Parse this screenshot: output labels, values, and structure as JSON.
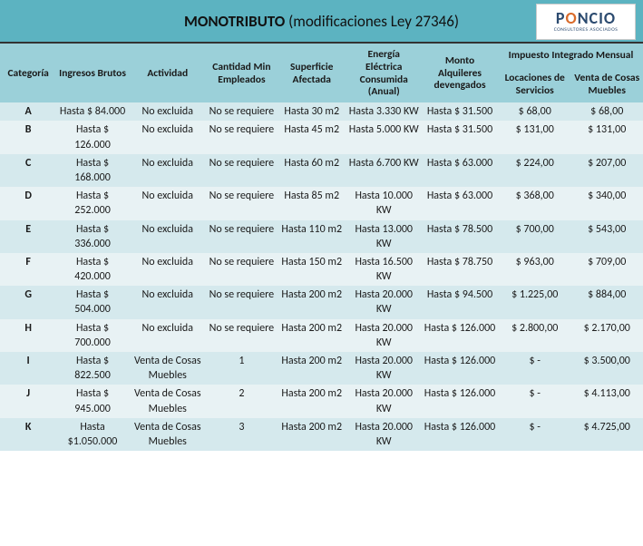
{
  "title_bold": "MONOTRIBUTO",
  "title_rest": " (modificaciones Ley 27346)",
  "logo": {
    "brand_pre": "P",
    "brand_accent": "O",
    "brand_post": "NCIO",
    "sub": "CONSULTORES ASOCIADOS"
  },
  "headers": {
    "categoria": "Categoría",
    "ingresos": "Ingresos Brutos",
    "actividad": "Actividad",
    "empleados": "Cantidad Min Empleados",
    "superficie": "Superficie Afectada",
    "energia": "Energía Eléctrica Consumida (Anual)",
    "alquileres": "Monto Alquileres devengados",
    "impuesto_group": "Impuesto Integrado Mensual",
    "locaciones": "Locaciones de Servicios",
    "venta": "Venta de Cosas Muebles"
  },
  "rows": [
    {
      "cat": "A",
      "ing": "Hasta $ 84.000",
      "act": "No excluida",
      "emp": "No se requiere",
      "sup": "Hasta 30 m2",
      "ene": "Hasta 3.330 KW",
      "alq": "Hasta $ 31.500",
      "loc": "$ 68,00",
      "ven": "$ 68,00"
    },
    {
      "cat": "B",
      "ing": "Hasta $ 126.000",
      "act": "No excluida",
      "emp": "No se requiere",
      "sup": "Hasta 45 m2",
      "ene": "Hasta 5.000 KW",
      "alq": "Hasta $ 31.500",
      "loc": "$ 131,00",
      "ven": "$ 131,00"
    },
    {
      "cat": "C",
      "ing": "Hasta $ 168.000",
      "act": "No excluida",
      "emp": "No se requiere",
      "sup": "Hasta 60 m2",
      "ene": "Hasta 6.700 KW",
      "alq": "Hasta $ 63.000",
      "loc": "$ 224,00",
      "ven": "$ 207,00"
    },
    {
      "cat": "D",
      "ing": "Hasta $ 252.000",
      "act": "No excluida",
      "emp": "No se requiere",
      "sup": "Hasta 85 m2",
      "ene": "Hasta 10.000 KW",
      "alq": "Hasta $ 63.000",
      "loc": "$ 368,00",
      "ven": "$ 340,00"
    },
    {
      "cat": "E",
      "ing": "Hasta $ 336.000",
      "act": "No excluida",
      "emp": "No se requiere",
      "sup": "Hasta 110 m2",
      "ene": "Hasta 13.000 KW",
      "alq": "Hasta $ 78.500",
      "loc": "$ 700,00",
      "ven": "$ 543,00"
    },
    {
      "cat": "F",
      "ing": "Hasta $ 420.000",
      "act": "No excluida",
      "emp": "No se requiere",
      "sup": "Hasta 150 m2",
      "ene": "Hasta 16.500 KW",
      "alq": "Hasta $ 78.750",
      "loc": "$ 963,00",
      "ven": "$ 709,00"
    },
    {
      "cat": "G",
      "ing": "Hasta $ 504.000",
      "act": "No excluida",
      "emp": "No se requiere",
      "sup": "Hasta 200 m2",
      "ene": "Hasta 20.000 KW",
      "alq": "Hasta $ 94.500",
      "loc": "$ 1.225,00",
      "ven": "$ 884,00"
    },
    {
      "cat": "H",
      "ing": "Hasta $ 700.000",
      "act": "No excluida",
      "emp": "No se requiere",
      "sup": "Hasta 200 m2",
      "ene": "Hasta 20.000 KW",
      "alq": "Hasta $ 126.000",
      "loc": "$ 2.800,00",
      "ven": "$ 2.170,00"
    },
    {
      "cat": "I",
      "ing": "Hasta $ 822.500",
      "act": "Venta de Cosas Muebles",
      "emp": "1",
      "sup": "Hasta 200 m2",
      "ene": "Hasta 20.000 KW",
      "alq": "Hasta $ 126.000",
      "loc": "$ -",
      "ven": "$ 3.500,00"
    },
    {
      "cat": "J",
      "ing": "Hasta $ 945.000",
      "act": "Venta de Cosas Muebles",
      "emp": "2",
      "sup": "Hasta 200 m2",
      "ene": "Hasta 20.000 KW",
      "alq": "Hasta $ 126.000",
      "loc": "$ -",
      "ven": "$ 4.113,00"
    },
    {
      "cat": "K",
      "ing": "Hasta $1.050.000",
      "act": "Venta de Cosas Muebles",
      "emp": "3",
      "sup": "Hasta 200 m2",
      "ene": "Hasta 20.000 KW",
      "alq": "Hasta $ 126.000",
      "loc": "$ -",
      "ven": "$ 4.725,00"
    }
  ]
}
